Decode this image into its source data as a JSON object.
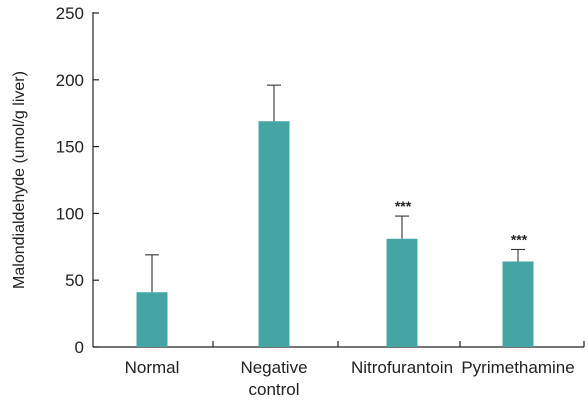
{
  "chart_data": {
    "type": "bar",
    "categories": [
      [
        "Normal"
      ],
      [
        "Negative",
        "control"
      ],
      [
        "Nitrofurantoin"
      ],
      [
        "Pyrimethamine"
      ]
    ],
    "values": [
      41,
      169,
      81,
      64
    ],
    "error_upper": [
      69,
      196,
      98,
      73
    ],
    "annotations": [
      "",
      "",
      "***",
      "***"
    ],
    "ylabel": "Malondialdehyde (umol/g liver)",
    "ylim": [
      0,
      250
    ],
    "yticks": [
      0,
      50,
      100,
      150,
      200,
      250
    ],
    "bar_color": "#45a5a5",
    "grid": false
  }
}
